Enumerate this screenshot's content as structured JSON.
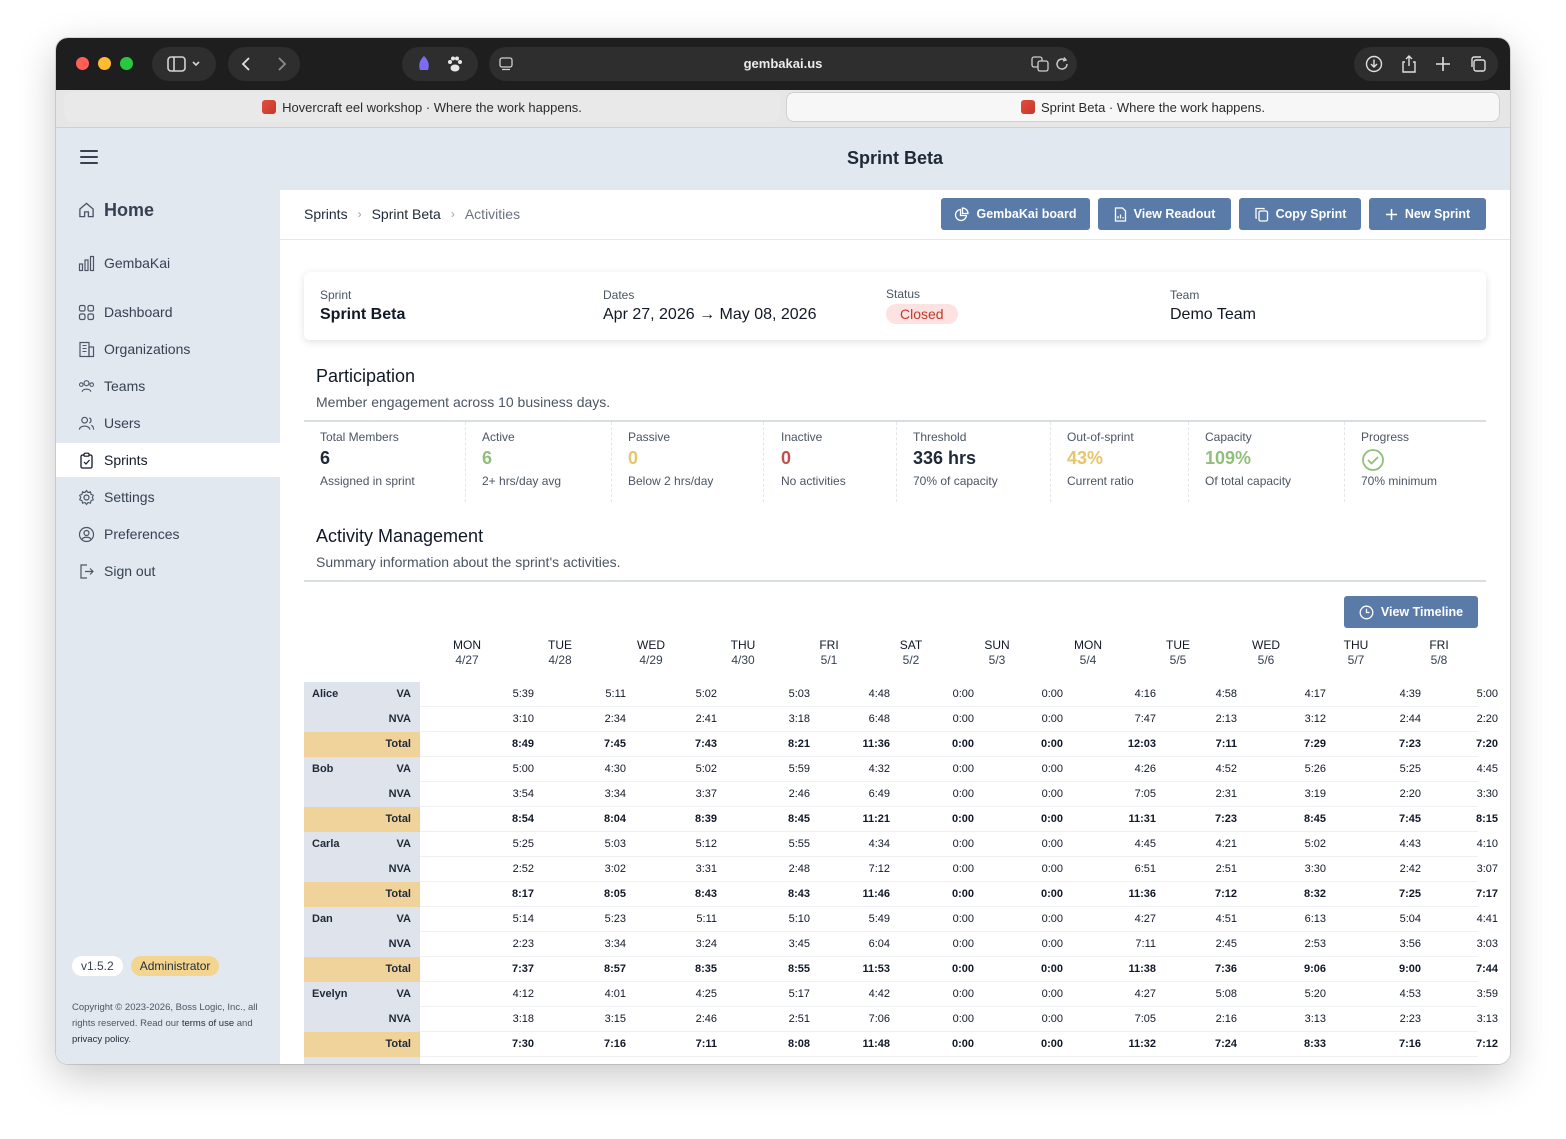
{
  "browser": {
    "url": "gembakai.us",
    "tabs": [
      {
        "title": "Hovercraft eel workshop · Where the work happens."
      },
      {
        "title": "Sprint Beta · Where the work happens."
      }
    ]
  },
  "header": {
    "title": "Sprint Beta"
  },
  "sidebar": {
    "items": [
      {
        "label": "Home",
        "icon": "home-icon"
      },
      {
        "label": "GembaKai",
        "icon": "bar-chart-icon"
      },
      {
        "label": "Dashboard",
        "icon": "dashboard-icon"
      },
      {
        "label": "Organizations",
        "icon": "building-icon"
      },
      {
        "label": "Teams",
        "icon": "teams-icon"
      },
      {
        "label": "Users",
        "icon": "users-icon"
      },
      {
        "label": "Sprints",
        "icon": "clipboard-icon"
      },
      {
        "label": "Settings",
        "icon": "gear-icon"
      },
      {
        "label": "Preferences",
        "icon": "user-circle-icon"
      },
      {
        "label": "Sign out",
        "icon": "sign-out-icon"
      }
    ],
    "version": "v1.5.2",
    "role": "Administrator",
    "copyright_pre": "Copyright © 2023-2026, Boss Logic, Inc., all rights reserved. Read our",
    "terms": "terms of use",
    "and": "and",
    "privacy": "privacy policy",
    "period": "."
  },
  "breadcrumb": {
    "root": "Sprints",
    "sprint": "Sprint Beta",
    "current": "Activities"
  },
  "actions": {
    "gembakai": "GembaKai board",
    "readout": "View Readout",
    "copy": "Copy Sprint",
    "new": "New Sprint"
  },
  "sprint_info": {
    "sprint_label": "Sprint",
    "sprint_value": "Sprint Beta",
    "dates_label": "Dates",
    "dates_value": "Apr 27, 2026 → May 08, 2026",
    "status_label": "Status",
    "status_value": "Closed",
    "team_label": "Team",
    "team_value": "Demo Team"
  },
  "participation": {
    "title": "Participation",
    "subtitle": "Member engagement across 10 business days.",
    "stats": [
      {
        "label": "Total Members",
        "value": "6",
        "sub": "Assigned in sprint",
        "color": "#1f2937"
      },
      {
        "label": "Active",
        "value": "6",
        "sub": "2+ hrs/day avg",
        "color": "#8fbf7a"
      },
      {
        "label": "Passive",
        "value": "0",
        "sub": "Below 2 hrs/day",
        "color": "#e8c46a"
      },
      {
        "label": "Inactive",
        "value": "0",
        "sub": "No activities",
        "color": "#c0504d"
      },
      {
        "label": "Threshold",
        "value": "336 hrs",
        "sub": "70% of capacity",
        "color": "#1f2937"
      },
      {
        "label": "Out-of-sprint",
        "value": "43%",
        "sub": "Current ratio",
        "color": "#e8c46a"
      },
      {
        "label": "Capacity",
        "value": "109%",
        "sub": "Of total capacity",
        "color": "#8fbf7a"
      },
      {
        "label": "Progress",
        "value": "",
        "sub": "70% minimum",
        "color": "#8fbf7a"
      }
    ]
  },
  "activity": {
    "title": "Activity Management",
    "subtitle": "Summary information about the sprint's activities.",
    "timeline_button": "View Timeline",
    "days": [
      {
        "dow": "MON",
        "date": "4/27"
      },
      {
        "dow": "TUE",
        "date": "4/28"
      },
      {
        "dow": "WED",
        "date": "4/29"
      },
      {
        "dow": "THU",
        "date": "4/30"
      },
      {
        "dow": "FRI",
        "date": "5/1"
      },
      {
        "dow": "SAT",
        "date": "5/2"
      },
      {
        "dow": "SUN",
        "date": "5/3"
      },
      {
        "dow": "MON",
        "date": "5/4"
      },
      {
        "dow": "TUE",
        "date": "5/5"
      },
      {
        "dow": "WED",
        "date": "5/6"
      },
      {
        "dow": "THU",
        "date": "5/7"
      },
      {
        "dow": "FRI",
        "date": "5/8"
      }
    ],
    "members": [
      {
        "name": "Alice",
        "va": [
          "5:39",
          "5:11",
          "5:02",
          "5:03",
          "4:48",
          "0:00",
          "0:00",
          "4:16",
          "4:58",
          "4:17",
          "4:39",
          "5:00"
        ],
        "nva": [
          "3:10",
          "2:34",
          "2:41",
          "3:18",
          "6:48",
          "0:00",
          "0:00",
          "7:47",
          "2:13",
          "3:12",
          "2:44",
          "2:20"
        ],
        "total": [
          "8:49",
          "7:45",
          "7:43",
          "8:21",
          "11:36",
          "0:00",
          "0:00",
          "12:03",
          "7:11",
          "7:29",
          "7:23",
          "7:20"
        ]
      },
      {
        "name": "Bob",
        "va": [
          "5:00",
          "4:30",
          "5:02",
          "5:59",
          "4:32",
          "0:00",
          "0:00",
          "4:26",
          "4:52",
          "5:26",
          "5:25",
          "4:45"
        ],
        "nva": [
          "3:54",
          "3:34",
          "3:37",
          "2:46",
          "6:49",
          "0:00",
          "0:00",
          "7:05",
          "2:31",
          "3:19",
          "2:20",
          "3:30"
        ],
        "total": [
          "8:54",
          "8:04",
          "8:39",
          "8:45",
          "11:21",
          "0:00",
          "0:00",
          "11:31",
          "7:23",
          "8:45",
          "7:45",
          "8:15"
        ]
      },
      {
        "name": "Carla",
        "va": [
          "5:25",
          "5:03",
          "5:12",
          "5:55",
          "4:34",
          "0:00",
          "0:00",
          "4:45",
          "4:21",
          "5:02",
          "4:43",
          "4:10"
        ],
        "nva": [
          "2:52",
          "3:02",
          "3:31",
          "2:48",
          "7:12",
          "0:00",
          "0:00",
          "6:51",
          "2:51",
          "3:30",
          "2:42",
          "3:07"
        ],
        "total": [
          "8:17",
          "8:05",
          "8:43",
          "8:43",
          "11:46",
          "0:00",
          "0:00",
          "11:36",
          "7:12",
          "8:32",
          "7:25",
          "7:17"
        ]
      },
      {
        "name": "Dan",
        "va": [
          "5:14",
          "5:23",
          "5:11",
          "5:10",
          "5:49",
          "0:00",
          "0:00",
          "4:27",
          "4:51",
          "6:13",
          "5:04",
          "4:41"
        ],
        "nva": [
          "2:23",
          "3:34",
          "3:24",
          "3:45",
          "6:04",
          "0:00",
          "0:00",
          "7:11",
          "2:45",
          "2:53",
          "3:56",
          "3:03"
        ],
        "total": [
          "7:37",
          "8:57",
          "8:35",
          "8:55",
          "11:53",
          "0:00",
          "0:00",
          "11:38",
          "7:36",
          "9:06",
          "9:00",
          "7:44"
        ]
      },
      {
        "name": "Evelyn",
        "va": [
          "4:12",
          "4:01",
          "4:25",
          "5:17",
          "4:42",
          "0:00",
          "0:00",
          "4:27",
          "5:08",
          "5:20",
          "4:53",
          "3:59"
        ],
        "nva": [
          "3:18",
          "3:15",
          "2:46",
          "2:51",
          "7:06",
          "0:00",
          "0:00",
          "7:05",
          "2:16",
          "3:13",
          "2:23",
          "3:13"
        ],
        "total": [
          "7:30",
          "7:16",
          "7:11",
          "8:08",
          "11:48",
          "0:00",
          "0:00",
          "11:32",
          "7:24",
          "8:33",
          "7:16",
          "7:12"
        ]
      }
    ],
    "row_types": {
      "va": "VA",
      "nva": "NVA",
      "total": "Total"
    }
  }
}
